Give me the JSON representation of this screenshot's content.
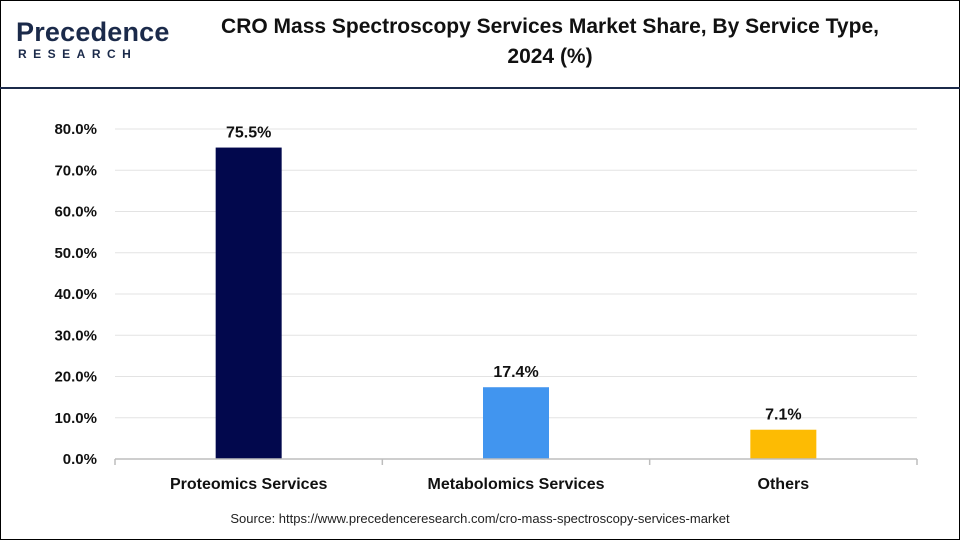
{
  "header": {
    "logo_top": "Precedence",
    "logo_bottom": "RESEARCH",
    "title_line1": "CRO Mass Spectroscopy Services Market Share, By Service Type,",
    "title_line2": "2024 (%)"
  },
  "source": "Source: https://www.precedenceresearch.com/cro-mass-spectroscopy-services-market",
  "chart_data": {
    "type": "bar",
    "title": "CRO Mass Spectroscopy Services Market Share, By Service Type, 2024 (%)",
    "categories": [
      "Proteomics Services",
      "Metabolomics Services",
      "Others"
    ],
    "values": [
      75.5,
      17.4,
      7.1
    ],
    "data_labels": [
      "75.5%",
      "17.4%",
      "7.1%"
    ],
    "colors": [
      "#02084d",
      "#4195ef",
      "#fdbb03"
    ],
    "ylim": [
      0,
      80
    ],
    "yticks": [
      "0.0%",
      "10.0%",
      "20.0%",
      "30.0%",
      "40.0%",
      "50.0%",
      "60.0%",
      "70.0%",
      "80.0%"
    ],
    "xlabel": "",
    "ylabel": "",
    "grid": true,
    "legend": "none"
  }
}
